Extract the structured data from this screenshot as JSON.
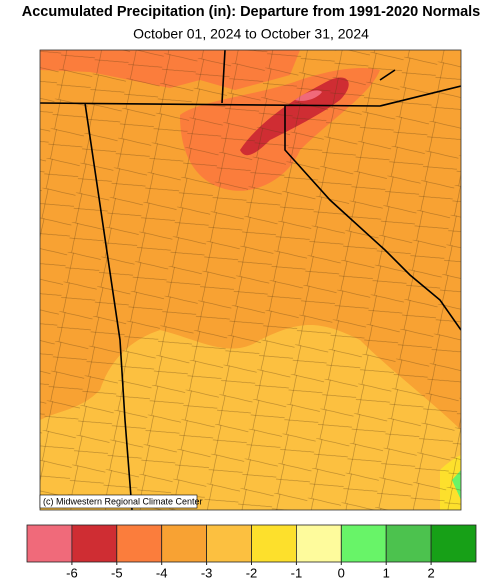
{
  "title": "Accumulated Precipitation (in): Departure from 1991-2020 Normals",
  "subtitle": "October 01, 2024 to October 31, 2024",
  "credit": "(c) Midwestern Regional Climate Center",
  "legend": {
    "colors": [
      "#f06a7a",
      "#cf2d33",
      "#fb7d3c",
      "#f8a233",
      "#fcc040",
      "#fde02c",
      "#fefb9c",
      "#68f468",
      "#4cc24e",
      "#17a017"
    ],
    "ticks": [
      -6,
      -5,
      -4,
      -3,
      -2,
      -1,
      0,
      1,
      2
    ]
  }
}
